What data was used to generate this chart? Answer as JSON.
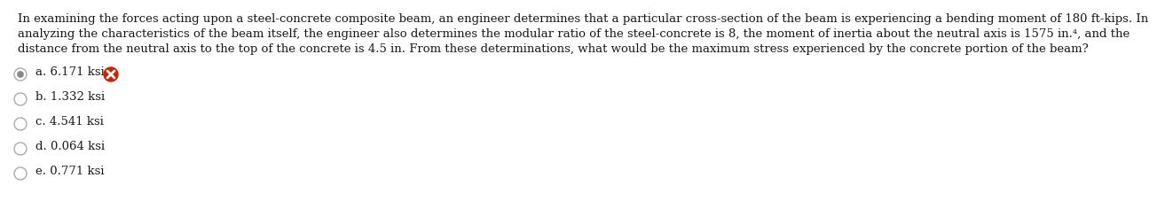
{
  "line1": "In examining the forces acting upon a steel-concrete composite beam, an engineer determines that a particular cross-section of the beam is experiencing a bending moment of 180 ft-kips. In",
  "line2": "analyzing the characteristics of the beam itself, the engineer also determines the modular ratio of the steel-concrete is 8, the moment of inertia about the neutral axis is 1575 in.⁴, and the",
  "line3": "distance from the neutral axis to the top of the concrete is 4.5 in. From these determinations, what would be the maximum stress experienced by the concrete portion of the beam?",
  "options": [
    {
      "label": "a. 6.171 ksi",
      "selected": true,
      "wrong": true
    },
    {
      "label": "b. 1.332 ksi",
      "selected": false,
      "wrong": false
    },
    {
      "label": "c. 4.541 ksi",
      "selected": false,
      "wrong": false
    },
    {
      "label": "d. 0.064 ksi",
      "selected": false,
      "wrong": false
    },
    {
      "label": "e. 0.771 ksi",
      "selected": false,
      "wrong": false
    }
  ],
  "bg_color": "#ffffff",
  "text_color": "#1a1a1a",
  "font_size_para": 9.5,
  "font_size_opt": 9.5,
  "wrong_icon_color": "#cc2200",
  "radio_outline_color": "#aaaaaa",
  "radio_fill_color": "#888888",
  "radio_inner_color": "#cccccc"
}
